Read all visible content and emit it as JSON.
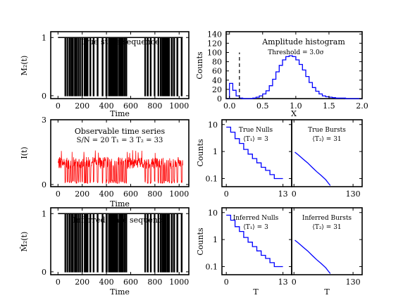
{
  "chart_data": [
    {
      "id": "true_state",
      "type": "line",
      "title": "True state sequence",
      "xlabel": "Time",
      "ylabel": "M₂(t)",
      "xlim": [
        -60,
        1080
      ],
      "ylim": [
        -0.05,
        1.1
      ],
      "xticks": [
        "0",
        "200",
        "400",
        "600",
        "800",
        "1000"
      ],
      "yticks": [
        "0",
        "1"
      ],
      "segments_off": [
        [
          58,
          63
        ],
        [
          75,
          80
        ],
        [
          92,
          99
        ],
        [
          108,
          114
        ],
        [
          121,
          126
        ],
        [
          137,
          141
        ],
        [
          149,
          156
        ],
        [
          166,
          171
        ],
        [
          181,
          185
        ],
        [
          197,
          203
        ],
        [
          217,
          223
        ],
        [
          228,
          233
        ],
        [
          241,
          247
        ],
        [
          264,
          270
        ],
        [
          291,
          297
        ],
        [
          324,
          330
        ],
        [
          365,
          371
        ],
        [
          396,
          404
        ],
        [
          418,
          425
        ],
        [
          431,
          437
        ],
        [
          444,
          452
        ],
        [
          460,
          466
        ],
        [
          474,
          481
        ],
        [
          486,
          493
        ],
        [
          503,
          509
        ],
        [
          517,
          523
        ],
        [
          531,
          537
        ],
        [
          546,
          552
        ],
        [
          561,
          567
        ],
        [
          717,
          722
        ],
        [
          737,
          744
        ],
        [
          762,
          768
        ],
        [
          795,
          800
        ],
        [
          826,
          831
        ],
        [
          845,
          851
        ],
        [
          860,
          866
        ],
        [
          873,
          879
        ],
        [
          886,
          892
        ],
        [
          900,
          906
        ],
        [
          913,
          920
        ],
        [
          936,
          943
        ],
        [
          955,
          962
        ],
        [
          982,
          989
        ],
        [
          1018,
          1024
        ]
      ]
    },
    {
      "id": "amplitude_hist",
      "type": "bar",
      "title": "Amplitude histogram",
      "annotation": "Threshold = 3.0σ",
      "threshold_x": 0.15,
      "xlabel": "X",
      "ylabel": "Counts",
      "xlim": [
        -0.05,
        2.0
      ],
      "ylim": [
        0,
        145
      ],
      "xticks": [
        "0.0",
        "0.5",
        "1.0",
        "1.5",
        "2.0"
      ],
      "yticks": [
        "0",
        "20",
        "40",
        "60",
        "80",
        "100",
        "120",
        "140"
      ],
      "bin_edges": [
        -0.05,
        0.0,
        0.05,
        0.1,
        0.15,
        0.2,
        0.25,
        0.3,
        0.35,
        0.4,
        0.45,
        0.5,
        0.55,
        0.6,
        0.65,
        0.7,
        0.75,
        0.8,
        0.85,
        0.9,
        0.95,
        1.0,
        1.05,
        1.1,
        1.15,
        1.2,
        1.25,
        1.3,
        1.35,
        1.4,
        1.45,
        1.5,
        1.55,
        1.6,
        1.65,
        1.7,
        1.75,
        1.8,
        1.85,
        1.9,
        1.95,
        2.0
      ],
      "values": [
        0,
        33,
        18,
        6,
        1,
        0,
        0,
        0,
        1,
        3,
        6,
        10,
        17,
        28,
        42,
        58,
        72,
        84,
        91,
        93,
        91,
        84,
        74,
        62,
        48,
        35,
        24,
        16,
        10,
        6,
        4,
        3,
        2,
        1,
        1,
        1,
        0,
        0,
        0,
        0,
        0
      ]
    },
    {
      "id": "observable",
      "type": "line",
      "title": "Observable time series",
      "subtitle": "S/N = 20    T₁ = 3    T₂ = 33",
      "xlabel": "Time",
      "ylabel": "I(t)",
      "xlim": [
        -60,
        1080
      ],
      "ylim": [
        -0.1,
        3.0
      ],
      "xticks": [
        "0",
        "200",
        "400",
        "600",
        "800",
        "1000"
      ],
      "yticks": [
        "0",
        "3"
      ],
      "series_color": "#ff0000"
    },
    {
      "id": "true_nulls",
      "type": "line",
      "title": "True Nulls",
      "annotation": "⟨T₁⟩ = 3",
      "ylabel": "Counts",
      "xlim": [
        -1,
        15
      ],
      "ylim_log": [
        0.05,
        15
      ],
      "xticks": [
        "0",
        "13"
      ],
      "yticks": [
        "0.1",
        "1",
        "10"
      ],
      "values": [
        [
          0,
          8
        ],
        [
          1,
          5.2
        ],
        [
          2,
          3
        ],
        [
          3,
          2
        ],
        [
          4,
          1.2
        ],
        [
          5,
          0.8
        ],
        [
          6,
          0.55
        ],
        [
          7,
          0.38
        ],
        [
          8,
          0.26
        ],
        [
          9,
          0.2
        ],
        [
          10,
          0.14
        ],
        [
          11,
          0.1
        ],
        [
          12,
          0.1
        ]
      ]
    },
    {
      "id": "true_bursts",
      "type": "line",
      "title": "True Bursts",
      "annotation": "⟨T₂⟩ = 31",
      "xlim": [
        -5,
        150
      ],
      "ylim_log": [
        0.05,
        15
      ],
      "xticks": [
        "0",
        "130"
      ],
      "values": [
        [
          2,
          0.95
        ],
        [
          10,
          0.74
        ],
        [
          20,
          0.53
        ],
        [
          30,
          0.38
        ],
        [
          40,
          0.26
        ],
        [
          50,
          0.18
        ],
        [
          60,
          0.13
        ],
        [
          70,
          0.09
        ],
        [
          75,
          0.07
        ],
        [
          80,
          0.055
        ]
      ]
    },
    {
      "id": "inferred_state",
      "type": "line",
      "title": "Inferred state sequence",
      "xlabel": "Time",
      "ylabel": "M̂₂(t)",
      "xlim": [
        -60,
        1080
      ],
      "ylim": [
        -0.05,
        1.1
      ],
      "xticks": [
        "0",
        "200",
        "400",
        "600",
        "800",
        "1000"
      ],
      "yticks": [
        "0",
        "1"
      ]
    },
    {
      "id": "inferred_nulls",
      "type": "line",
      "title": "Inferred Nulls",
      "annotation": "⟨T₁⟩ = 3",
      "xlabel": "T",
      "ylabel": "Counts",
      "xlim": [
        -1,
        15
      ],
      "ylim_log": [
        0.05,
        15
      ],
      "xticks": [
        "0",
        "13"
      ],
      "yticks": [
        "0.1",
        "1",
        "10"
      ],
      "values": [
        [
          0,
          8
        ],
        [
          1,
          5.2
        ],
        [
          2,
          3
        ],
        [
          3,
          2
        ],
        [
          4,
          1.2
        ],
        [
          5,
          0.8
        ],
        [
          6,
          0.55
        ],
        [
          7,
          0.38
        ],
        [
          8,
          0.26
        ],
        [
          9,
          0.2
        ],
        [
          10,
          0.14
        ],
        [
          11,
          0.1
        ],
        [
          12,
          0.1
        ]
      ]
    },
    {
      "id": "inferred_bursts",
      "type": "line",
      "title": "Inferred Bursts",
      "annotation": "⟨T₂⟩ = 31",
      "xlabel": "T",
      "xlim": [
        -5,
        150
      ],
      "ylim_log": [
        0.05,
        15
      ],
      "xticks": [
        "0",
        "130"
      ],
      "values": [
        [
          2,
          0.95
        ],
        [
          10,
          0.74
        ],
        [
          20,
          0.53
        ],
        [
          30,
          0.38
        ],
        [
          40,
          0.26
        ],
        [
          50,
          0.18
        ],
        [
          60,
          0.13
        ],
        [
          70,
          0.09
        ],
        [
          75,
          0.07
        ],
        [
          80,
          0.055
        ]
      ]
    }
  ],
  "colors": {
    "state_line": "#000000",
    "signal": "#ff0000",
    "histogram": "#0000ff",
    "dwell": "#0000ff"
  }
}
